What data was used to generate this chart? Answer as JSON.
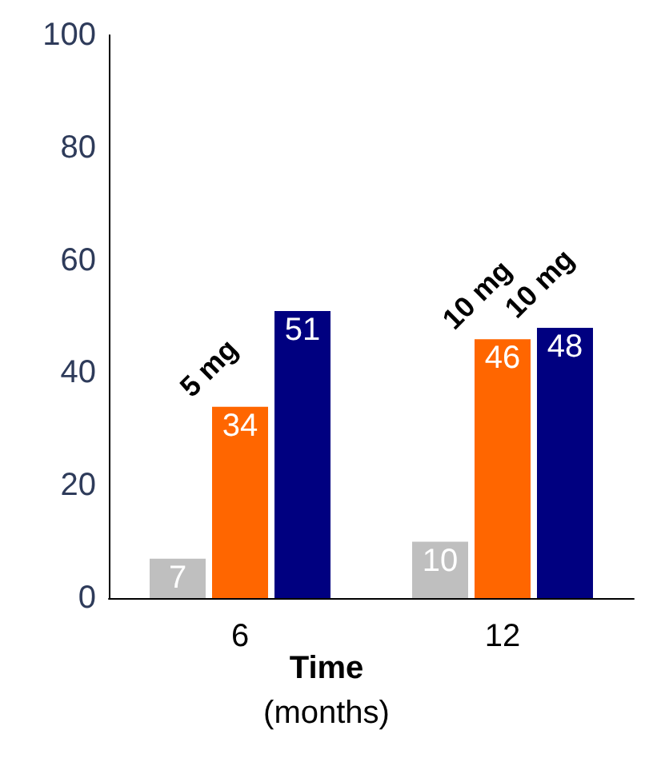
{
  "chart_data": {
    "type": "bar",
    "xlabel": "Time\n(months)",
    "categories": [
      "6",
      "12"
    ],
    "series": [
      {
        "color": "#bfbfbf",
        "values": [
          7,
          10
        ]
      },
      {
        "color": "#ff6600",
        "values": [
          34,
          46
        ]
      },
      {
        "color": "#000080",
        "values": [
          51,
          48
        ]
      }
    ],
    "ylim": [
      0,
      100
    ],
    "yticks": [
      0,
      20,
      40,
      60,
      80,
      100
    ],
    "grid": false,
    "data_labels": true,
    "annotations": [
      {
        "text": "5 mg",
        "x": "6",
        "y": 34
      },
      {
        "text": "10 mg",
        "x": "12",
        "y": 46
      },
      "10 mg"
    ]
  }
}
